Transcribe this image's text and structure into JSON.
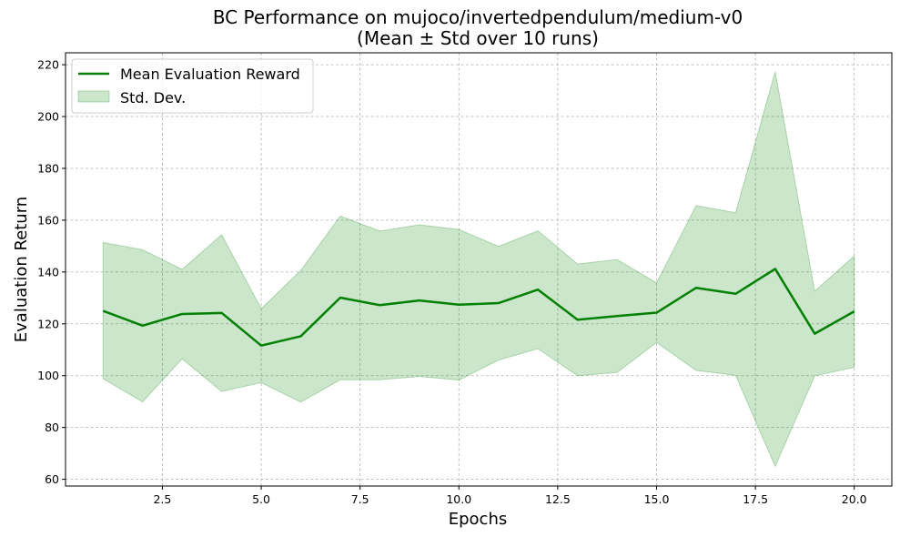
{
  "chart_data": {
    "type": "line",
    "title": "BC Performance on mujoco/invertedpendulum/medium-v0",
    "subtitle": "(Mean ± Std over 10 runs)",
    "xlabel": "Epochs",
    "ylabel": "Evaluation Return",
    "xlim": [
      0.05,
      20.95
    ],
    "ylim": [
      57.4,
      224.6
    ],
    "xticks": [
      2.5,
      5.0,
      7.5,
      10.0,
      12.5,
      15.0,
      17.5,
      20.0
    ],
    "xtick_labels": [
      "2.5",
      "5.0",
      "7.5",
      "10.0",
      "12.5",
      "15.0",
      "17.5",
      "20.0"
    ],
    "yticks": [
      60,
      80,
      100,
      120,
      140,
      160,
      180,
      200,
      220
    ],
    "ytick_labels": [
      "60",
      "80",
      "100",
      "120",
      "140",
      "160",
      "180",
      "200",
      "220"
    ],
    "grid": true,
    "legend_position": "upper-left",
    "x": [
      1,
      2,
      3,
      4,
      5,
      6,
      7,
      8,
      9,
      10,
      11,
      12,
      13,
      14,
      15,
      16,
      17,
      18,
      19,
      20
    ],
    "series": [
      {
        "name": "Mean Evaluation Reward",
        "kind": "line",
        "color": "#008000",
        "values": [
          125.0,
          119.3,
          123.8,
          124.2,
          111.6,
          115.2,
          130.1,
          127.2,
          129.0,
          127.4,
          128.0,
          133.2,
          121.6,
          123.0,
          124.3,
          133.9,
          131.6,
          141.2,
          116.2,
          124.8
        ]
      },
      {
        "name": "Std. Dev.",
        "kind": "band",
        "color": "#008000",
        "opacity": 0.2,
        "upper": [
          151.4,
          148.6,
          141.0,
          154.4,
          125.8,
          140.6,
          161.6,
          155.8,
          158.2,
          156.4,
          149.9,
          155.9,
          143.1,
          144.8,
          135.8,
          165.6,
          162.9,
          217.3,
          132.6,
          146.2
        ],
        "lower": [
          98.8,
          89.9,
          106.5,
          93.9,
          97.3,
          89.8,
          98.4,
          98.4,
          99.7,
          98.3,
          106.0,
          110.4,
          100.0,
          101.2,
          112.8,
          102.0,
          100.1,
          65.0,
          99.9,
          103.2
        ]
      }
    ]
  }
}
